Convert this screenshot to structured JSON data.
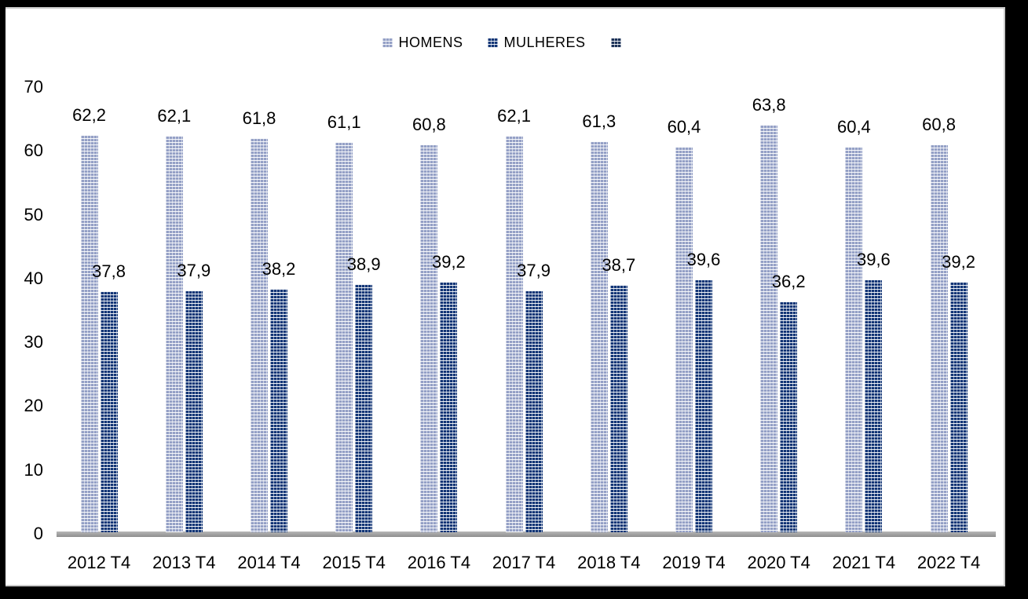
{
  "frame": {
    "border_color": "#000000",
    "inner_border_color": "#c9c9c9",
    "background": "#ffffff"
  },
  "legend": {
    "items": [
      {
        "label": "HOMENS",
        "color": "#94A0C6"
      },
      {
        "label": "MULHERES",
        "color": "#123576"
      },
      {
        "label": "",
        "color": "#1B3157"
      }
    ]
  },
  "chart_data": {
    "type": "bar",
    "title": "",
    "xlabel": "",
    "ylabel": "",
    "categories": [
      "2012 T4",
      "2013 T4",
      "2014 T4",
      "2015 T4",
      "2016 T4",
      "2017 T4",
      "2018 T4",
      "2019 T4",
      "2020 T4",
      "2021 T4",
      "2022 T4"
    ],
    "series": [
      {
        "name": "HOMENS",
        "color": "#94A0C6",
        "pattern": "dotted-weave",
        "values": [
          62.2,
          62.1,
          61.8,
          61.1,
          60.8,
          62.1,
          61.3,
          60.4,
          63.8,
          60.4,
          60.8
        ]
      },
      {
        "name": "MULHERES",
        "color": "#123576",
        "pattern": "dotted-weave",
        "values": [
          37.8,
          37.9,
          38.2,
          38.9,
          39.2,
          37.9,
          38.7,
          39.6,
          36.2,
          39.6,
          39.2
        ]
      }
    ],
    "ylim": [
      0,
      70
    ],
    "y_ticks": [
      0,
      10,
      20,
      30,
      40,
      50,
      60,
      70
    ],
    "grid": false,
    "legend_position": "top",
    "data_labels": true,
    "decimal_separator": ",",
    "axis_line_color": "#a3a3a3"
  }
}
